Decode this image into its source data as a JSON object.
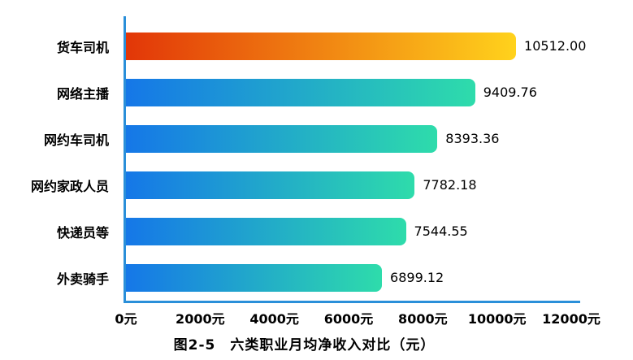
{
  "title": "图2-5　六类职业月均净收入对比（元）",
  "chart_data": {
    "type": "bar",
    "orientation": "horizontal",
    "title": "图2-5　六类职业月均净收入对比（元）",
    "categories": [
      "货车司机",
      "网络主播",
      "网约车司机",
      "网约家政人员",
      "快递员等",
      "外卖骑手"
    ],
    "values": [
      10512.0,
      9409.76,
      8393.36,
      7782.18,
      7544.55,
      6899.12
    ],
    "value_labels": [
      "10512.00",
      "9409.76",
      "8393.36",
      "7782.18",
      "7544.55",
      "6899.12"
    ],
    "x_ticks": [
      "0元",
      "2000元",
      "4000元",
      "6000元",
      "8000元",
      "10000元",
      "12000元"
    ],
    "xlim": [
      0,
      12000
    ],
    "grid": false,
    "legend": "none",
    "bar_colors": {
      "highlight_gradient": [
        "#e23608",
        "#ffd21c"
      ],
      "default_gradient": [
        "#1577e8",
        "#2edcab"
      ]
    },
    "axis_color": "#2a8fd9",
    "text_color": "#000000"
  }
}
